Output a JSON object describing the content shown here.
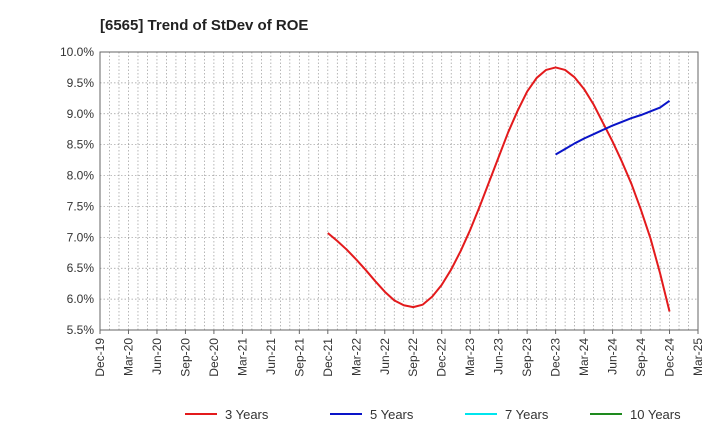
{
  "chart_data": {
    "type": "line",
    "title": "[6565]  Trend of StDev of ROE",
    "xlabel": "",
    "ylabel": "",
    "x_ticks": [
      "Dec-19",
      "Mar-20",
      "Jun-20",
      "Sep-20",
      "Dec-20",
      "Mar-21",
      "Jun-21",
      "Sep-21",
      "Dec-21",
      "Mar-22",
      "Jun-22",
      "Sep-22",
      "Dec-22",
      "Mar-23",
      "Jun-23",
      "Sep-23",
      "Dec-23",
      "Mar-24",
      "Jun-24",
      "Sep-24",
      "Dec-24",
      "Mar-25"
    ],
    "y_ticks": [
      "5.5%",
      "6.0%",
      "6.5%",
      "7.0%",
      "7.5%",
      "8.0%",
      "8.5%",
      "9.0%",
      "9.5%",
      "10.0%"
    ],
    "ylim": [
      5.5,
      10.0
    ],
    "grid": true,
    "legend_position": "bottom",
    "series": [
      {
        "name": "3 Years",
        "color": "#e31a1c",
        "x": [
          "Dec-21",
          "Jan-22",
          "Feb-22",
          "Mar-22",
          "Apr-22",
          "May-22",
          "Jun-22",
          "Jul-22",
          "Aug-22",
          "Sep-22",
          "Oct-22",
          "Nov-22",
          "Dec-22",
          "Jan-23",
          "Feb-23",
          "Mar-23",
          "Apr-23",
          "May-23",
          "Jun-23",
          "Jul-23",
          "Aug-23",
          "Sep-23",
          "Oct-23",
          "Nov-23",
          "Dec-23",
          "Jan-24",
          "Feb-24",
          "Mar-24",
          "Apr-24",
          "May-24",
          "Jun-24",
          "Jul-24",
          "Aug-24",
          "Sep-24",
          "Oct-24",
          "Nov-24",
          "Dec-24"
        ],
        "values": [
          7.07,
          6.94,
          6.8,
          6.64,
          6.47,
          6.29,
          6.12,
          5.98,
          5.9,
          5.87,
          5.91,
          6.04,
          6.23,
          6.48,
          6.78,
          7.12,
          7.5,
          7.9,
          8.3,
          8.7,
          9.05,
          9.36,
          9.58,
          9.71,
          9.75,
          9.71,
          9.59,
          9.4,
          9.15,
          8.85,
          8.55,
          8.22,
          7.86,
          7.44,
          6.98,
          6.42,
          5.8
        ]
      },
      {
        "name": "5 Years",
        "color": "#0a14c8",
        "x": [
          "Dec-23",
          "Jan-24",
          "Feb-24",
          "Mar-24",
          "Apr-24",
          "May-24",
          "Jun-24",
          "Jul-24",
          "Aug-24",
          "Sep-24",
          "Oct-24",
          "Nov-24",
          "Dec-24"
        ],
        "values": [
          8.34,
          8.43,
          8.52,
          8.6,
          8.67,
          8.74,
          8.81,
          8.87,
          8.93,
          8.98,
          9.04,
          9.1,
          9.21
        ]
      },
      {
        "name": "7 Years",
        "color": "#00e5ee",
        "x": [],
        "values": []
      },
      {
        "name": "10 Years",
        "color": "#1e8a1e",
        "x": [],
        "values": []
      }
    ]
  }
}
